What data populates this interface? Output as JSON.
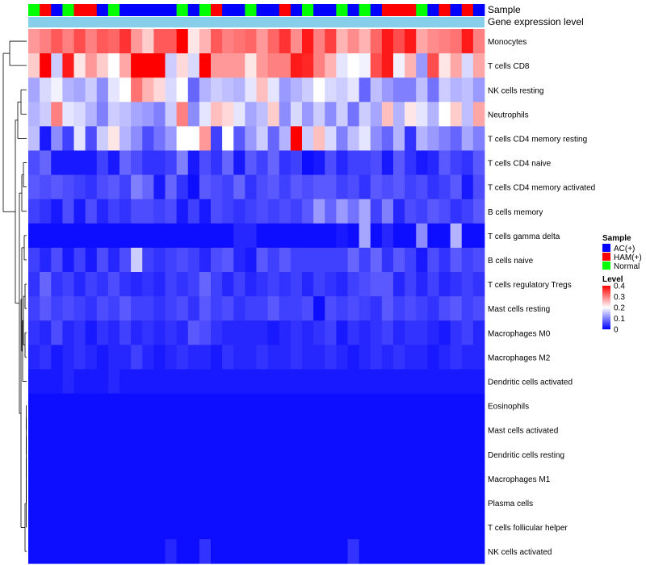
{
  "chart_data": {
    "type": "heatmap",
    "annotation_tracks": [
      "Sample",
      "Gene expression level"
    ],
    "samples": [
      "Normal",
      "HAM(+)",
      "AC(+)",
      "Normal",
      "HAM(+)",
      "HAM(+)",
      "AC(+)",
      "Normal",
      "AC(+)",
      "AC(+)",
      "AC(+)",
      "AC(+)",
      "AC(+)",
      "Normal",
      "AC(+)",
      "Normal",
      "HAM(+)",
      "AC(+)",
      "AC(+)",
      "Normal",
      "AC(+)",
      "AC(+)",
      "HAM(+)",
      "AC(+)",
      "Normal",
      "AC(+)",
      "AC(+)",
      "Normal",
      "AC(+)",
      "Normal",
      "AC(+)",
      "HAM(+)",
      "HAM(+)",
      "HAM(+)",
      "Normal",
      "AC(+)",
      "HAM(+)",
      "AC(+)",
      "HAM(+)",
      "AC(+)"
    ],
    "rows": [
      "Monocytes",
      "T cells CD8",
      "NK cells resting",
      "Neutrophils",
      "T cells CD4 memory resting",
      "T cells CD4 naive",
      "T cells CD4 memory activated",
      "B cells memory",
      "T cells gamma delta",
      "B cells naive",
      "T cells regulatory  Tregs",
      "Mast cells resting",
      "Macrophages M0",
      "Macrophages M2",
      "Dendritic cells activated",
      "Eosinophils",
      "Mast cells activated",
      "Dendritic cells resting",
      "Macrophages M1",
      "Plasma cells",
      "T cells follicular helper",
      "NK cells activated"
    ],
    "values": [
      [
        0.28,
        0.3,
        0.33,
        0.3,
        0.34,
        0.3,
        0.33,
        0.32,
        0.36,
        0.28,
        0.24,
        0.33,
        0.33,
        0.4,
        0.22,
        0.26,
        0.33,
        0.3,
        0.31,
        0.32,
        0.28,
        0.32,
        0.36,
        0.29,
        0.38,
        0.3,
        0.35,
        0.26,
        0.29,
        0.26,
        0.32,
        0.38,
        0.34,
        0.38,
        0.27,
        0.29,
        0.3,
        0.31,
        0.38,
        0.3
      ],
      [
        0.24,
        0.4,
        0.16,
        0.38,
        0.22,
        0.28,
        0.24,
        0.2,
        0.27,
        0.4,
        0.4,
        0.4,
        0.16,
        0.23,
        0.17,
        0.4,
        0.28,
        0.28,
        0.28,
        0.22,
        0.28,
        0.3,
        0.3,
        0.38,
        0.37,
        0.3,
        0.26,
        0.18,
        0.2,
        0.19,
        0.34,
        0.38,
        0.19,
        0.26,
        0.12,
        0.34,
        0.22,
        0.27,
        0.17,
        0.27
      ],
      [
        0.13,
        0.17,
        0.19,
        0.14,
        0.13,
        0.16,
        0.11,
        0.18,
        0.2,
        0.31,
        0.26,
        0.23,
        0.17,
        0.2,
        0.08,
        0.14,
        0.16,
        0.15,
        0.14,
        0.18,
        0.25,
        0.18,
        0.12,
        0.14,
        0.16,
        0.2,
        0.17,
        0.16,
        0.18,
        0.08,
        0.15,
        0.12,
        0.1,
        0.1,
        0.15,
        0.09,
        0.16,
        0.14,
        0.15,
        0.12
      ],
      [
        0.14,
        0.16,
        0.3,
        0.18,
        0.17,
        0.14,
        0.1,
        0.16,
        0.15,
        0.13,
        0.12,
        0.1,
        0.16,
        0.3,
        0.11,
        0.18,
        0.25,
        0.23,
        0.18,
        0.13,
        0.15,
        0.24,
        0.11,
        0.17,
        0.12,
        0.16,
        0.11,
        0.16,
        0.09,
        0.16,
        0.13,
        0.25,
        0.14,
        0.22,
        0.18,
        0.14,
        0.2,
        0.24,
        0.15,
        0.27
      ],
      [
        0.15,
        0.02,
        0.11,
        0.05,
        0.18,
        0.06,
        0.16,
        0.22,
        0.14,
        0.11,
        0.06,
        0.09,
        0.12,
        0.2,
        0.2,
        0.28,
        0.05,
        0.2,
        0.07,
        0.12,
        0.16,
        0.08,
        0.14,
        0.4,
        0.16,
        0.25,
        0.17,
        0.1,
        0.15,
        0.18,
        0.11,
        0.08,
        0.14,
        0.04,
        0.14,
        0.12,
        0.1,
        0.08,
        0.13,
        0.1
      ],
      [
        0.06,
        0.08,
        0.02,
        0.02,
        0.02,
        0.02,
        0.05,
        0.02,
        0.08,
        0.06,
        0.04,
        0.04,
        0.05,
        0.1,
        0.02,
        0.06,
        0.04,
        0.08,
        0.02,
        0.07,
        0.05,
        0.08,
        0.04,
        0.05,
        0.01,
        0.02,
        0.06,
        0.03,
        0.05,
        0.05,
        0.06,
        0.02,
        0.07,
        0.04,
        0.02,
        0.03,
        0.07,
        0.05,
        0.04,
        0.07
      ],
      [
        0.07,
        0.06,
        0.07,
        0.06,
        0.05,
        0.04,
        0.06,
        0.07,
        0.05,
        0.1,
        0.08,
        0.02,
        0.08,
        0.04,
        0.01,
        0.07,
        0.06,
        0.05,
        0.08,
        0.04,
        0.06,
        0.07,
        0.05,
        0.07,
        0.06,
        0.07,
        0.07,
        0.05,
        0.06,
        0.04,
        0.07,
        0.06,
        0.07,
        0.05,
        0.06,
        0.04,
        0.05,
        0.07,
        0.02,
        0.06
      ],
      [
        0.05,
        0.04,
        0.02,
        0.06,
        0.02,
        0.06,
        0.03,
        0.05,
        0.04,
        0.06,
        0.06,
        0.05,
        0.06,
        0.02,
        0.05,
        0.02,
        0.06,
        0.05,
        0.04,
        0.05,
        0.06,
        0.05,
        0.06,
        0.05,
        0.07,
        0.12,
        0.08,
        0.12,
        0.09,
        0.13,
        0.05,
        0.1,
        0.03,
        0.06,
        0.05,
        0.07,
        0.06,
        0.04,
        0.05,
        0.07
      ],
      [
        0.01,
        0.01,
        0.01,
        0.01,
        0.01,
        0.01,
        0.01,
        0.01,
        0.01,
        0.01,
        0.01,
        0.01,
        0.01,
        0.01,
        0.01,
        0.01,
        0.01,
        0.01,
        0.03,
        0.03,
        0.01,
        0.01,
        0.01,
        0.01,
        0.01,
        0.01,
        0.01,
        0.02,
        0.01,
        0.13,
        0.01,
        0.03,
        0.01,
        0.01,
        0.11,
        0.01,
        0.01,
        0.14,
        0.01,
        0.01
      ],
      [
        0.05,
        0.03,
        0.06,
        0.02,
        0.05,
        0.02,
        0.06,
        0.03,
        0.06,
        0.16,
        0.05,
        0.04,
        0.05,
        0.06,
        0.05,
        0.03,
        0.06,
        0.07,
        0.03,
        0.02,
        0.07,
        0.05,
        0.07,
        0.05,
        0.05,
        0.05,
        0.05,
        0.05,
        0.08,
        0.05,
        0.08,
        0.04,
        0.07,
        0.05,
        0.02,
        0.06,
        0.04,
        0.07,
        0.05,
        0.06
      ],
      [
        0.04,
        0.08,
        0.04,
        0.05,
        0.03,
        0.05,
        0.04,
        0.06,
        0.04,
        0.03,
        0.04,
        0.03,
        0.05,
        0.04,
        0.05,
        0.08,
        0.05,
        0.03,
        0.05,
        0.03,
        0.04,
        0.05,
        0.04,
        0.05,
        0.03,
        0.05,
        0.04,
        0.03,
        0.05,
        0.06,
        0.07,
        0.07,
        0.03,
        0.05,
        0.03,
        0.05,
        0.03,
        0.04,
        0.05,
        0.04
      ],
      [
        0.05,
        0.07,
        0.05,
        0.06,
        0.05,
        0.04,
        0.06,
        0.05,
        0.07,
        0.05,
        0.05,
        0.04,
        0.05,
        0.06,
        0.04,
        0.07,
        0.05,
        0.06,
        0.04,
        0.05,
        0.05,
        0.07,
        0.05,
        0.05,
        0.06,
        0.01,
        0.06,
        0.05,
        0.06,
        0.05,
        0.04,
        0.07,
        0.05,
        0.06,
        0.05,
        0.04,
        0.06,
        0.07,
        0.05,
        0.06
      ],
      [
        0.04,
        0.03,
        0.06,
        0.03,
        0.04,
        0.02,
        0.04,
        0.03,
        0.05,
        0.03,
        0.04,
        0.03,
        0.04,
        0.03,
        0.07,
        0.06,
        0.04,
        0.03,
        0.03,
        0.03,
        0.03,
        0.02,
        0.03,
        0.04,
        0.03,
        0.04,
        0.05,
        0.02,
        0.04,
        0.03,
        0.04,
        0.05,
        0.03,
        0.04,
        0.04,
        0.03,
        0.02,
        0.04,
        0.05,
        0.03
      ],
      [
        0.03,
        0.04,
        0.02,
        0.03,
        0.04,
        0.03,
        0.02,
        0.03,
        0.03,
        0.05,
        0.03,
        0.02,
        0.03,
        0.04,
        0.03,
        0.03,
        0.02,
        0.04,
        0.03,
        0.03,
        0.04,
        0.03,
        0.03,
        0.04,
        0.03,
        0.03,
        0.04,
        0.03,
        0.02,
        0.03,
        0.04,
        0.03,
        0.04,
        0.03,
        0.03,
        0.02,
        0.03,
        0.04,
        0.03,
        0.03
      ],
      [
        0.02,
        0.02,
        0.02,
        0.03,
        0.02,
        0.02,
        0.02,
        0.03,
        0.02,
        0.02,
        0.02,
        0.02,
        0.02,
        0.02,
        0.02,
        0.02,
        0.02,
        0.02,
        0.02,
        0.02,
        0.02,
        0.02,
        0.02,
        0.02,
        0.02,
        0.02,
        0.02,
        0.02,
        0.02,
        0.02,
        0.02,
        0.02,
        0.02,
        0.02,
        0.02,
        0.02,
        0.02,
        0.02,
        0.02,
        0.02
      ],
      [
        0.01,
        0.01,
        0.01,
        0.01,
        0.01,
        0.01,
        0.01,
        0.01,
        0.01,
        0.01,
        0.01,
        0.01,
        0.01,
        0.01,
        0.01,
        0.01,
        0.01,
        0.01,
        0.01,
        0.01,
        0.01,
        0.01,
        0.01,
        0.01,
        0.01,
        0.01,
        0.01,
        0.01,
        0.01,
        0.01,
        0.01,
        0.01,
        0.01,
        0.01,
        0.01,
        0.01,
        0.01,
        0.01,
        0.01,
        0.01
      ],
      [
        0.01,
        0.01,
        0.01,
        0.01,
        0.01,
        0.01,
        0.01,
        0.01,
        0.01,
        0.01,
        0.01,
        0.01,
        0.01,
        0.01,
        0.01,
        0.01,
        0.01,
        0.01,
        0.01,
        0.01,
        0.01,
        0.01,
        0.01,
        0.01,
        0.01,
        0.01,
        0.01,
        0.01,
        0.01,
        0.01,
        0.01,
        0.01,
        0.01,
        0.01,
        0.01,
        0.01,
        0.01,
        0.01,
        0.01,
        0.01
      ],
      [
        0.01,
        0.01,
        0.01,
        0.01,
        0.01,
        0.01,
        0.01,
        0.01,
        0.01,
        0.01,
        0.01,
        0.01,
        0.01,
        0.01,
        0.01,
        0.01,
        0.01,
        0.01,
        0.01,
        0.01,
        0.01,
        0.01,
        0.01,
        0.01,
        0.01,
        0.01,
        0.01,
        0.01,
        0.01,
        0.01,
        0.01,
        0.01,
        0.01,
        0.01,
        0.01,
        0.01,
        0.01,
        0.01,
        0.01,
        0.01
      ],
      [
        0.01,
        0.01,
        0.01,
        0.01,
        0.01,
        0.01,
        0.01,
        0.01,
        0.01,
        0.01,
        0.01,
        0.01,
        0.01,
        0.01,
        0.01,
        0.01,
        0.01,
        0.01,
        0.01,
        0.01,
        0.01,
        0.01,
        0.01,
        0.01,
        0.01,
        0.01,
        0.01,
        0.01,
        0.01,
        0.01,
        0.01,
        0.01,
        0.01,
        0.01,
        0.01,
        0.01,
        0.01,
        0.01,
        0.01,
        0.01
      ],
      [
        0.01,
        0.01,
        0.01,
        0.01,
        0.01,
        0.01,
        0.01,
        0.01,
        0.01,
        0.01,
        0.01,
        0.01,
        0.01,
        0.01,
        0.01,
        0.01,
        0.01,
        0.01,
        0.01,
        0.01,
        0.01,
        0.01,
        0.01,
        0.01,
        0.01,
        0.01,
        0.01,
        0.01,
        0.01,
        0.01,
        0.01,
        0.01,
        0.01,
        0.01,
        0.01,
        0.01,
        0.01,
        0.01,
        0.01,
        0.01
      ],
      [
        0.01,
        0.01,
        0.01,
        0.01,
        0.01,
        0.01,
        0.01,
        0.01,
        0.01,
        0.01,
        0.01,
        0.01,
        0.01,
        0.01,
        0.01,
        0.01,
        0.01,
        0.01,
        0.01,
        0.01,
        0.01,
        0.01,
        0.01,
        0.01,
        0.01,
        0.01,
        0.01,
        0.01,
        0.01,
        0.01,
        0.01,
        0.01,
        0.01,
        0.01,
        0.01,
        0.01,
        0.01,
        0.01,
        0.01,
        0.01
      ],
      [
        0.01,
        0.01,
        0.01,
        0.01,
        0.01,
        0.01,
        0.01,
        0.01,
        0.01,
        0.01,
        0.01,
        0.01,
        0.03,
        0.01,
        0.01,
        0.04,
        0.01,
        0.01,
        0.01,
        0.01,
        0.01,
        0.01,
        0.01,
        0.01,
        0.01,
        0.01,
        0.01,
        0.01,
        0.04,
        0.01,
        0.01,
        0.01,
        0.01,
        0.01,
        0.01,
        0.01,
        0.01,
        0.01,
        0.01,
        0.01
      ]
    ],
    "legend": {
      "sample_title": "Sample",
      "sample_entries": [
        {
          "label": "AC(+)",
          "color": "#0000ff"
        },
        {
          "label": "HAM(+)",
          "color": "#ff0000"
        },
        {
          "label": "Normal",
          "color": "#00ff00"
        }
      ],
      "level_title": "Level",
      "level_ticks": [
        "0.4",
        "0.3",
        "0.2",
        "0.1",
        "0"
      ],
      "level_range": [
        0,
        0.4
      ]
    },
    "colors": {
      "low": "#0000ff",
      "mid": "#ffffff",
      "high": "#ff0000",
      "gene_expression_bar": "#87ceeb"
    }
  }
}
